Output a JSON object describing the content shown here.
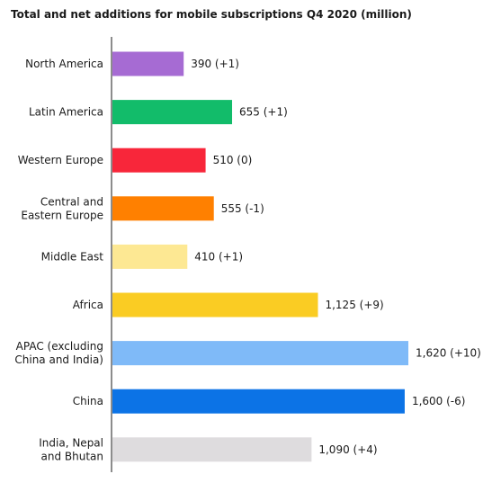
{
  "chart_data": {
    "type": "bar",
    "orientation": "horizontal",
    "title": "Total and net additions for mobile subscriptions Q4 2020 (million)",
    "categories": [
      "North America",
      "Latin America",
      "Western Europe",
      "Central and Eastern Europe",
      "Middle East",
      "Africa",
      "APAC (excluding China and India)",
      "China",
      "India, Nepal and Bhutan"
    ],
    "category_lines": [
      [
        "North America"
      ],
      [
        "Latin America"
      ],
      [
        "Western Europe"
      ],
      [
        "Central and",
        "Eastern Europe"
      ],
      [
        "Middle East"
      ],
      [
        "Africa"
      ],
      [
        "APAC (excluding",
        "China and India)"
      ],
      [
        "China"
      ],
      [
        "India, Nepal",
        "and Bhutan"
      ]
    ],
    "values": [
      390,
      655,
      510,
      555,
      410,
      1125,
      1620,
      1600,
      1090
    ],
    "net_additions": [
      1,
      1,
      0,
      -1,
      1,
      9,
      10,
      -6,
      4
    ],
    "value_labels": [
      "390 (+1)",
      "655 (+1)",
      "510 (0)",
      "555 (-1)",
      "410 (+1)",
      "1,125 (+9)",
      "1,620 (+10)",
      "1,600 (-6)",
      "1,090 (+4)"
    ],
    "colors": [
      "#a66bd3",
      "#12bc6a",
      "#f8263a",
      "#ff8000",
      "#fde893",
      "#facc23",
      "#7fbaf8",
      "#0c73e6",
      "#dedcde"
    ],
    "xlim": [
      0,
      1620
    ],
    "grid": false,
    "legend": "none"
  }
}
